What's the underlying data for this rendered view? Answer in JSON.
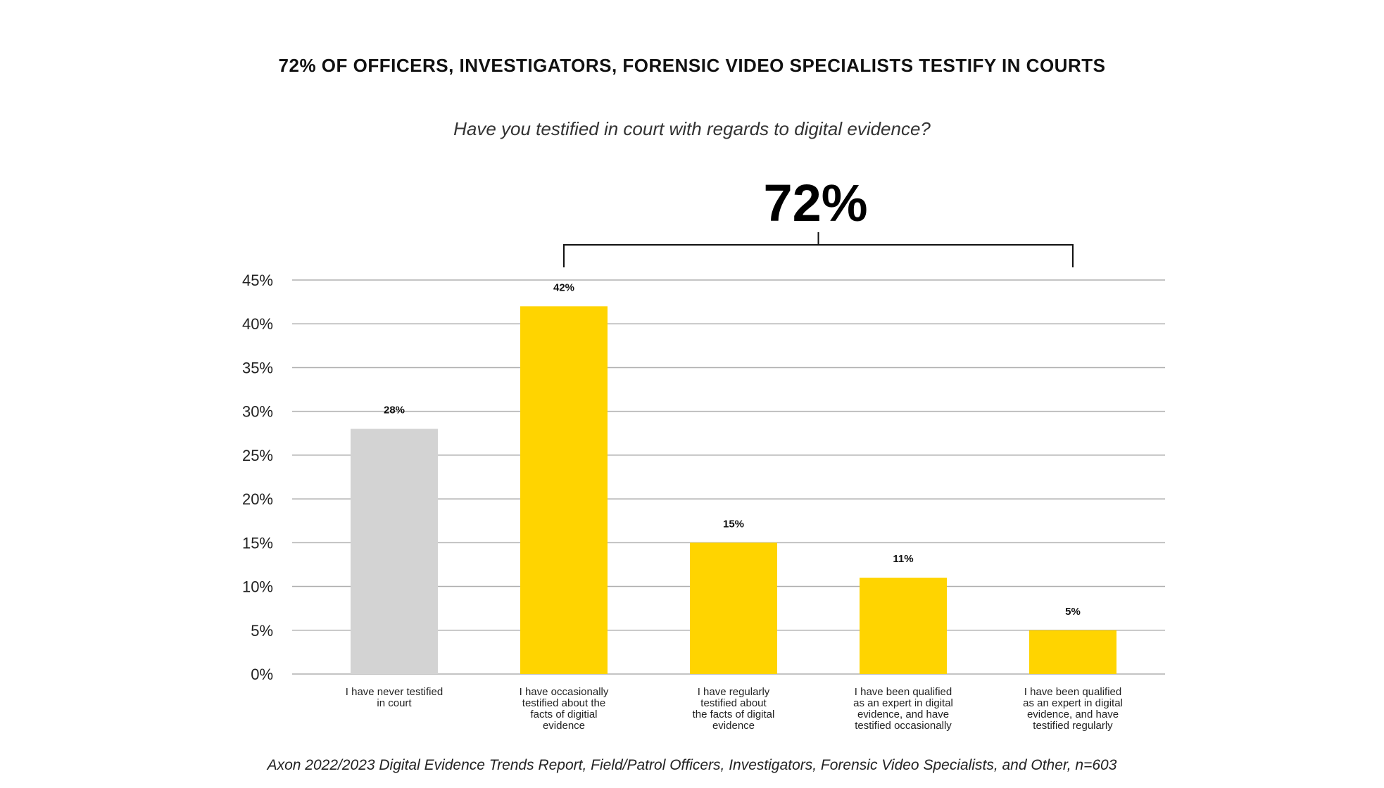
{
  "chart_data": {
    "type": "bar",
    "title": "72% OF OFFICERS, INVESTIGATORS, FORENSIC VIDEO SPECIALISTS TESTIFY IN COURTS",
    "subtitle": "Have you testified in court with regards to digital evidence?",
    "categories": [
      [
        "I have never testified",
        "in court"
      ],
      [
        "I have occasionally",
        "testified about the",
        "facts of digitial",
        "evidence"
      ],
      [
        "I have regularly",
        "testified about",
        "the facts of digital",
        "evidence"
      ],
      [
        "I have been qualified",
        "as an expert in digital",
        "evidence, and have",
        "testified occasionally"
      ],
      [
        "I have been qualified",
        "as an expert in digital",
        "evidence, and have",
        "testified regularly"
      ]
    ],
    "values": [
      28,
      42,
      15,
      11,
      5
    ],
    "value_labels": [
      "28%",
      "42%",
      "15%",
      "11%",
      "5%"
    ],
    "bar_colors": [
      "#d3d3d3",
      "#ffd400",
      "#ffd400",
      "#ffd400",
      "#ffd400"
    ],
    "ylim": [
      0,
      45
    ],
    "yticks": [
      0,
      5,
      10,
      15,
      20,
      25,
      30,
      35,
      40,
      45
    ],
    "ytick_labels": [
      "0%",
      "5%",
      "10%",
      "15%",
      "20%",
      "25%",
      "30%",
      "35%",
      "40%",
      "45%"
    ],
    "grid": true,
    "xlabel": "",
    "ylabel": "",
    "bracket": {
      "label": "72%",
      "from_category_index": 1,
      "to_category_index": 4
    },
    "source": "Axon 2022/2023 Digital Evidence Trends Report, Field/Patrol Officers, Investigators, Forensic Video Specialists, and Other, n=603"
  },
  "colors": {
    "highlight": "#ffd400",
    "neutral": "#d3d3d3",
    "grid": "#b0b0b0",
    "text": "#111111"
  }
}
